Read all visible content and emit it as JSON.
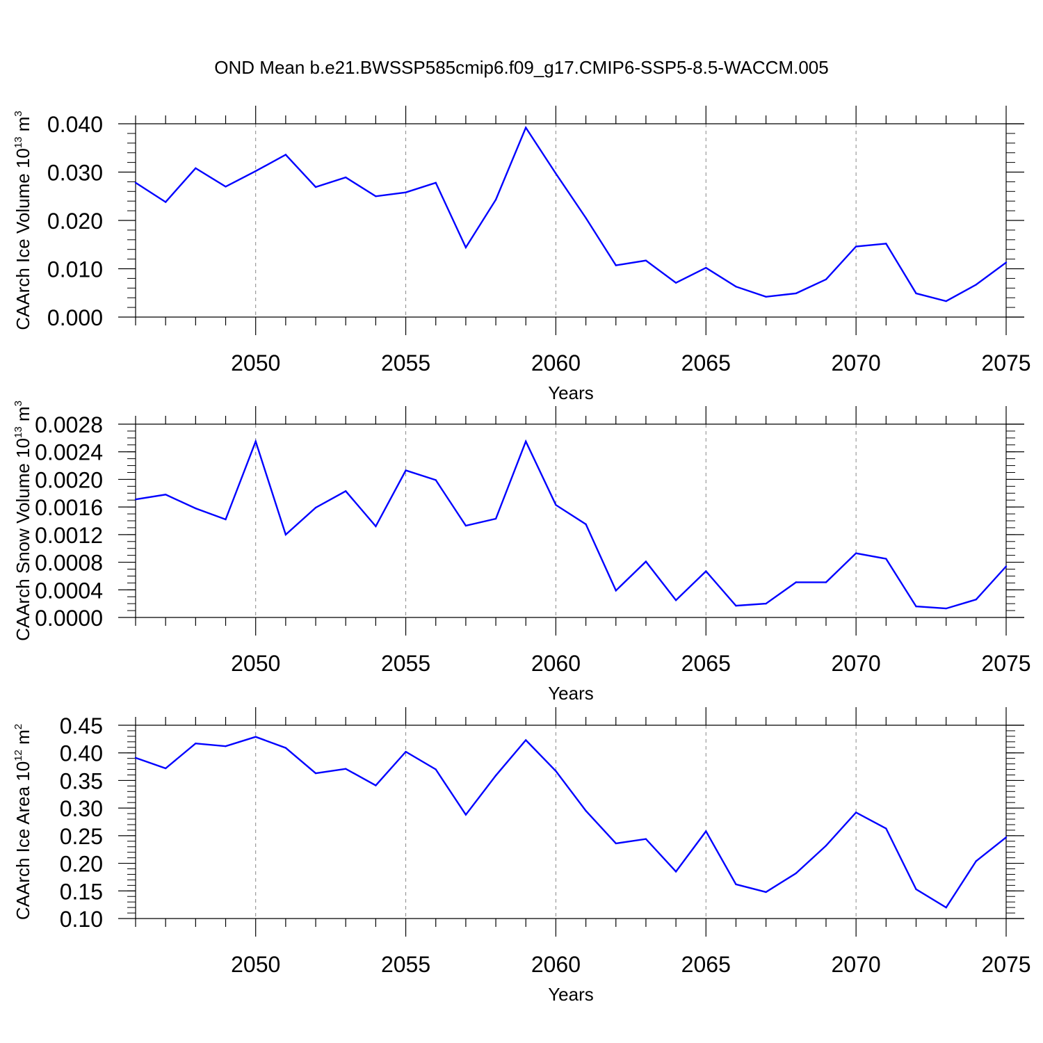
{
  "figure_title": "OND Mean b.e21.BWSSP585cmip6.f09_g17.CMIP6-SSP5-8.5-WACCM.005",
  "colors": {
    "line": "#0000ff",
    "axis": "#000000",
    "grid": "#888888"
  },
  "chart_data": [
    {
      "type": "line",
      "ylabel_main": "CAArch Ice Volume 10",
      "ylabel_exp": "13",
      "ylabel_unit": " m",
      "ylabel_unit_exp": "3",
      "xlabel": "Years",
      "xlim": [
        2046,
        2075
      ],
      "ylim": [
        0.0,
        0.04
      ],
      "yticks": [
        0.0,
        0.01,
        0.02,
        0.03,
        0.04
      ],
      "ytick_labels": [
        "0.000",
        "0.010",
        "0.020",
        "0.030",
        "0.040"
      ],
      "yminor_step": 0.002,
      "xticks": [
        2050,
        2055,
        2060,
        2065,
        2070,
        2075
      ],
      "xtick_labels": [
        "2050",
        "2055",
        "2060",
        "2065",
        "2070",
        "2075"
      ],
      "grid": "vertical dashed at major x ticks",
      "x": [
        2046,
        2047,
        2048,
        2049,
        2050,
        2051,
        2052,
        2053,
        2054,
        2055,
        2056,
        2057,
        2058,
        2059,
        2060,
        2061,
        2062,
        2063,
        2064,
        2065,
        2066,
        2067,
        2068,
        2069,
        2070,
        2071,
        2072,
        2073,
        2074,
        2075
      ],
      "values": [
        0.0278,
        0.0238,
        0.0308,
        0.027,
        0.0302,
        0.0336,
        0.0269,
        0.0289,
        0.025,
        0.0258,
        0.0278,
        0.0144,
        0.0243,
        0.0392,
        0.0297,
        0.0205,
        0.0107,
        0.0117,
        0.0071,
        0.0102,
        0.0063,
        0.0042,
        0.0049,
        0.0078,
        0.0146,
        0.0152,
        0.0049,
        0.0033,
        0.0067,
        0.0113
      ]
    },
    {
      "type": "line",
      "ylabel_main": "CAArch Snow Volume 10",
      "ylabel_exp": "13",
      "ylabel_unit": " m",
      "ylabel_unit_exp": "3",
      "xlabel": "Years",
      "xlim": [
        2046,
        2075
      ],
      "ylim": [
        0.0,
        0.0028
      ],
      "yticks": [
        0.0,
        0.0004,
        0.0008,
        0.0012,
        0.0016,
        0.002,
        0.0024,
        0.0028
      ],
      "ytick_labels": [
        "0.0000",
        "0.0004",
        "0.0008",
        "0.0012",
        "0.0016",
        "0.0020",
        "0.0024",
        "0.0028"
      ],
      "yminor_step": 0.0001,
      "xticks": [
        2050,
        2055,
        2060,
        2065,
        2070,
        2075
      ],
      "xtick_labels": [
        "2050",
        "2055",
        "2060",
        "2065",
        "2070",
        "2075"
      ],
      "grid": "vertical dashed at major x ticks",
      "x": [
        2046,
        2047,
        2048,
        2049,
        2050,
        2051,
        2052,
        2053,
        2054,
        2055,
        2056,
        2057,
        2058,
        2059,
        2060,
        2061,
        2062,
        2063,
        2064,
        2065,
        2066,
        2067,
        2068,
        2069,
        2070,
        2071,
        2072,
        2073,
        2074,
        2075
      ],
      "values": [
        0.00171,
        0.00178,
        0.00158,
        0.00142,
        0.00255,
        0.0012,
        0.00159,
        0.00183,
        0.00132,
        0.00213,
        0.00199,
        0.00133,
        0.00143,
        0.00255,
        0.00163,
        0.00135,
        0.00039,
        0.00081,
        0.00025,
        0.00067,
        0.00017,
        0.0002,
        0.00051,
        0.00051,
        0.00093,
        0.00085,
        0.00016,
        0.00013,
        0.00026,
        0.00074
      ]
    },
    {
      "type": "line",
      "ylabel_main": "CAArch Ice Area 10",
      "ylabel_exp": "12",
      "ylabel_unit": " m",
      "ylabel_unit_exp": "2",
      "xlabel": "Years",
      "xlim": [
        2046,
        2075
      ],
      "ylim": [
        0.1,
        0.45
      ],
      "yticks": [
        0.1,
        0.15,
        0.2,
        0.25,
        0.3,
        0.35,
        0.4,
        0.45
      ],
      "ytick_labels": [
        "0.10",
        "0.15",
        "0.20",
        "0.25",
        "0.30",
        "0.35",
        "0.40",
        "0.45"
      ],
      "yminor_step": 0.01,
      "xticks": [
        2050,
        2055,
        2060,
        2065,
        2070,
        2075
      ],
      "xtick_labels": [
        "2050",
        "2055",
        "2060",
        "2065",
        "2070",
        "2075"
      ],
      "grid": "vertical dashed at major x ticks",
      "x": [
        2046,
        2047,
        2048,
        2049,
        2050,
        2051,
        2052,
        2053,
        2054,
        2055,
        2056,
        2057,
        2058,
        2059,
        2060,
        2061,
        2062,
        2063,
        2064,
        2065,
        2066,
        2067,
        2068,
        2069,
        2070,
        2071,
        2072,
        2073,
        2074,
        2075
      ],
      "values": [
        0.391,
        0.372,
        0.417,
        0.412,
        0.429,
        0.409,
        0.363,
        0.371,
        0.341,
        0.402,
        0.37,
        0.288,
        0.359,
        0.423,
        0.367,
        0.295,
        0.236,
        0.244,
        0.185,
        0.258,
        0.162,
        0.148,
        0.182,
        0.232,
        0.292,
        0.263,
        0.153,
        0.12,
        0.204,
        0.247
      ]
    }
  ]
}
